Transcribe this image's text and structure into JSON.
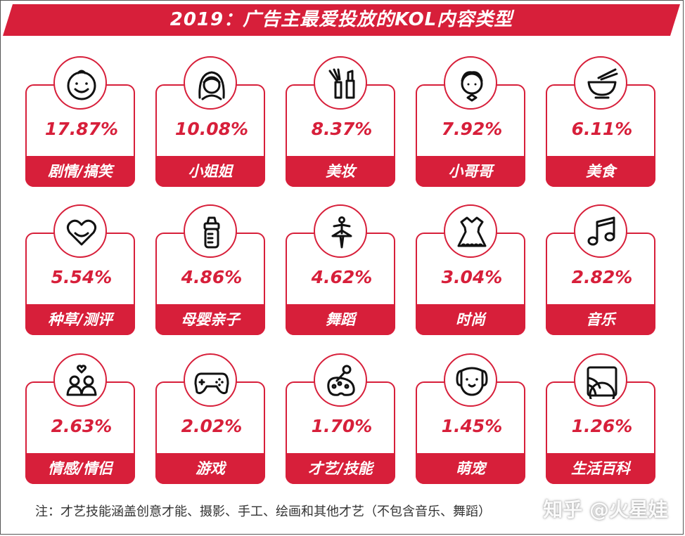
{
  "title": "2019：广告主最爱投放的KOL内容类型",
  "colors": {
    "accent": "#d71f3a",
    "banner": "#d71f3a"
  },
  "chart_data": {
    "type": "table",
    "title": "2019：广告主最爱投放的KOL内容类型",
    "categories": [
      "剧情/搞笑",
      "小姐姐",
      "美妆",
      "小哥哥",
      "美食",
      "种草/测评",
      "母婴亲子",
      "舞蹈",
      "时尚",
      "音乐",
      "情感/情侣",
      "游戏",
      "才艺/技能",
      "萌宠",
      "生活百科"
    ],
    "values_label": [
      "17.87%",
      "10.08%",
      "8.37%",
      "7.92%",
      "6.11%",
      "5.54%",
      "4.86%",
      "4.62%",
      "3.04%",
      "2.82%",
      "2.63%",
      "2.02%",
      "1.70%",
      "1.45%",
      "1.26%"
    ],
    "values": [
      17.87,
      10.08,
      8.37,
      7.92,
      6.11,
      5.54,
      4.86,
      4.62,
      3.04,
      2.82,
      2.63,
      2.02,
      1.7,
      1.45,
      1.26
    ],
    "icons": [
      "smiley-icon",
      "girl-icon",
      "makeup-icon",
      "boy-icon",
      "bowl-icon",
      "heart-icon",
      "baby-bottle-icon",
      "dancer-icon",
      "dress-icon",
      "music-note-icon",
      "couple-icon",
      "gamepad-icon",
      "palette-icon",
      "puppy-icon",
      "picture-icon"
    ]
  },
  "footnote": "注：才艺技能涵盖创意才能、摄影、手工、绘画和其他才艺（不包含音乐、舞蹈）",
  "watermark": "知乎 @火星娃"
}
